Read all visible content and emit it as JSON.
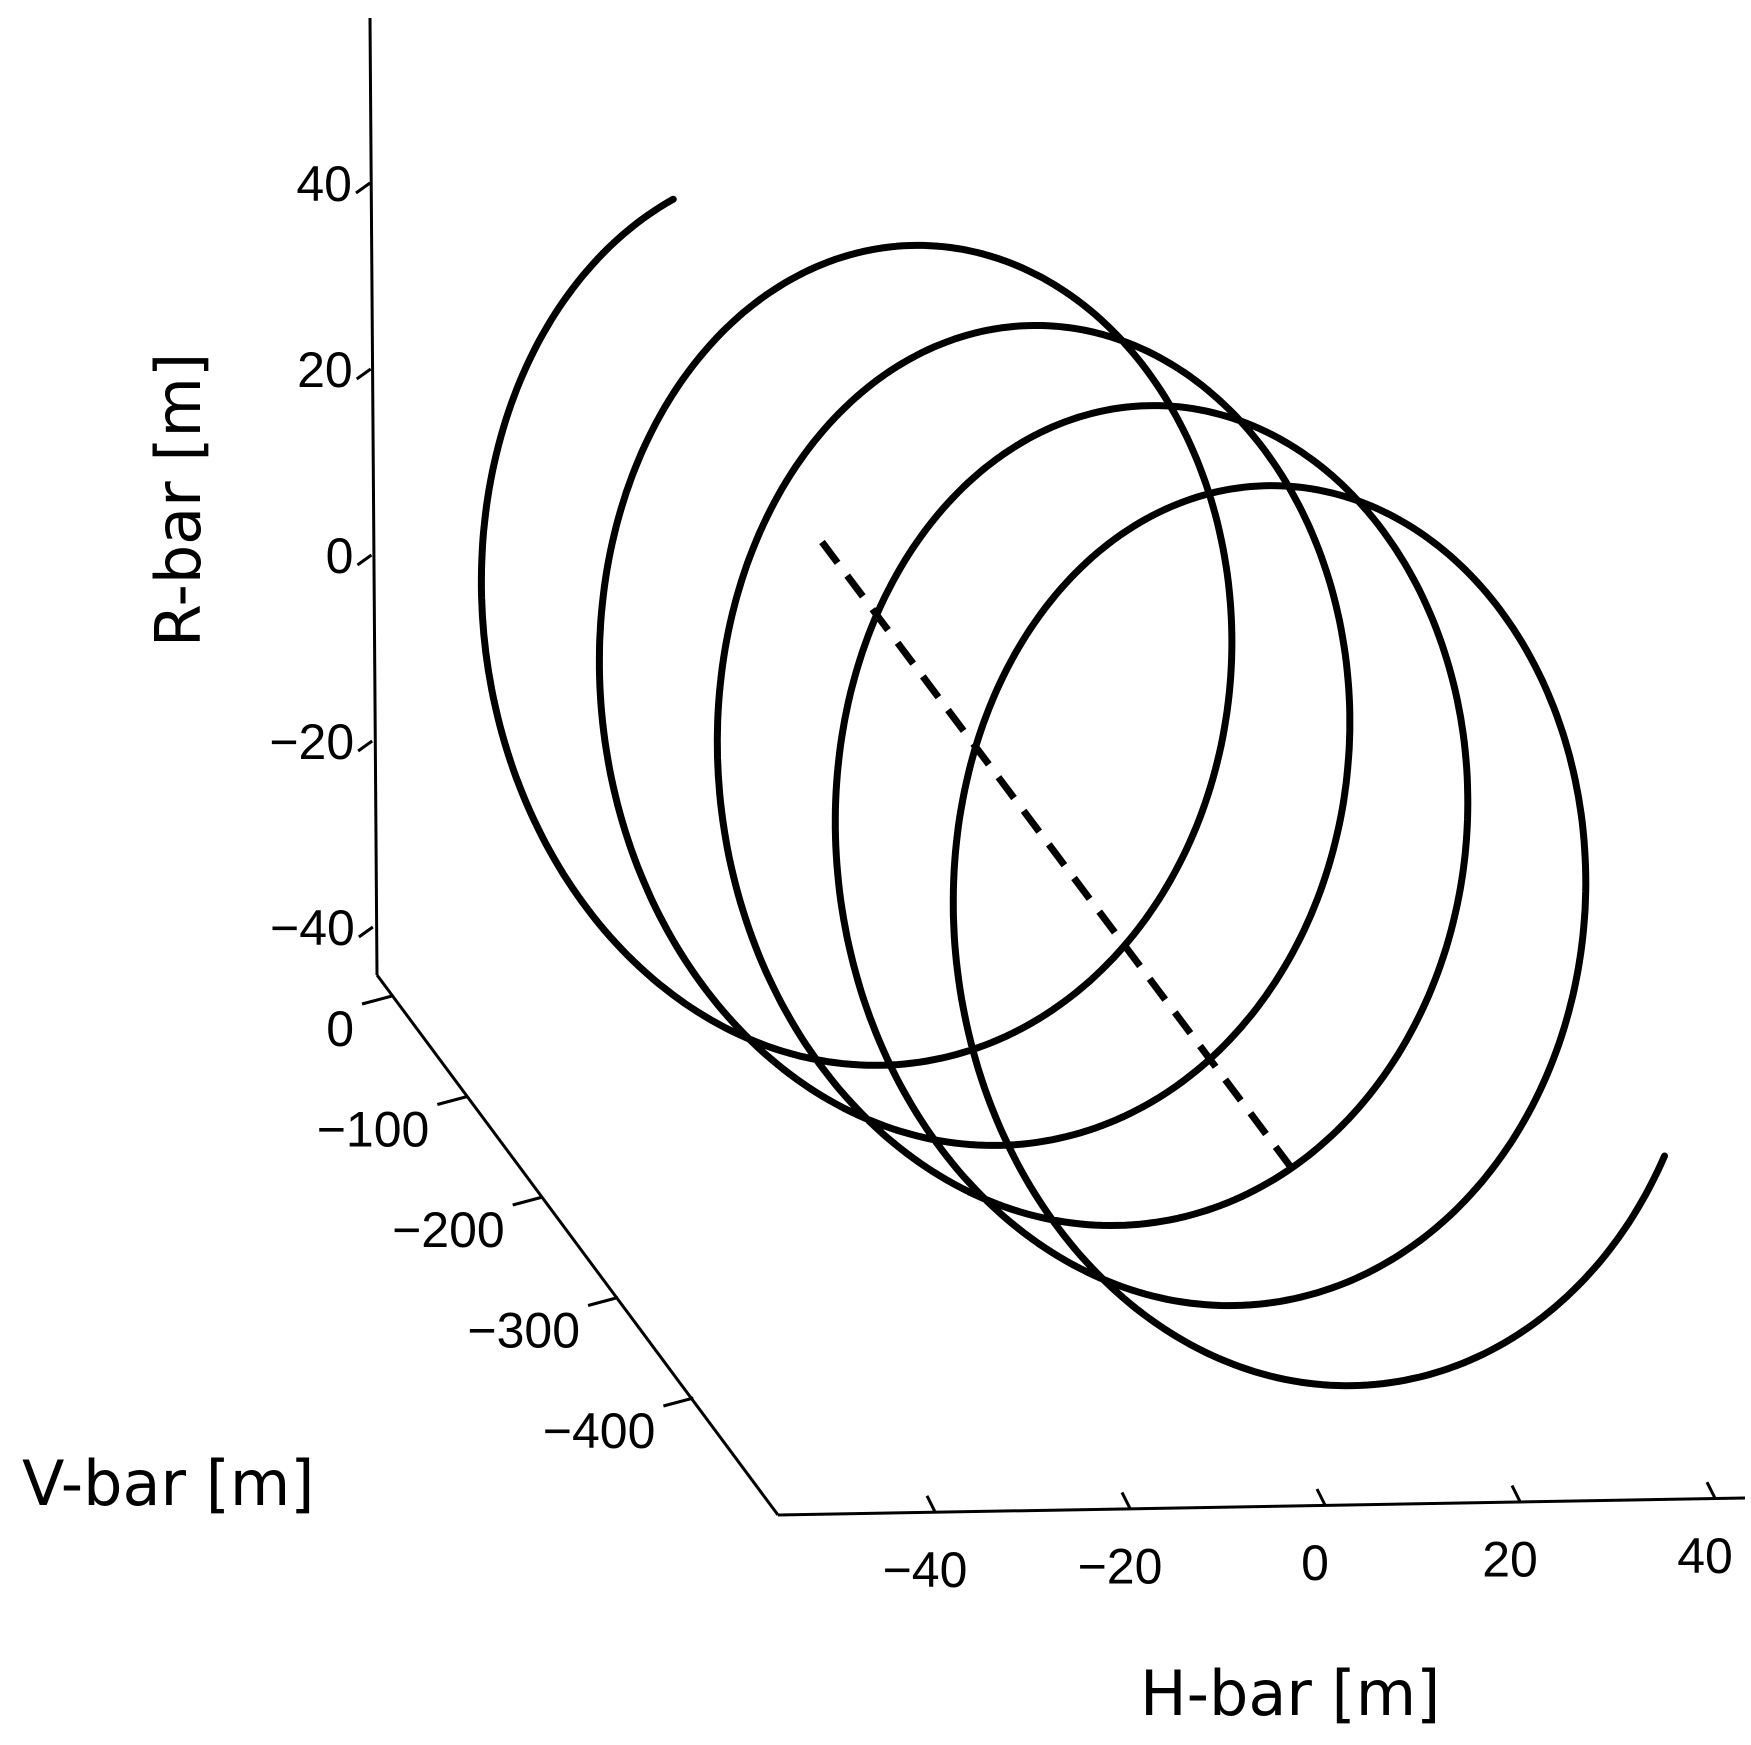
{
  "chart_data": {
    "type": "line",
    "projection": "3d",
    "title": "",
    "axes": {
      "x": {
        "label": "H-bar [m]",
        "range": [
          -50,
          50
        ],
        "ticks": [
          -40,
          -20,
          0,
          20,
          40
        ]
      },
      "y": {
        "label": "V-bar [m]",
        "range": [
          -450,
          50
        ],
        "ticks": [
          0,
          -100,
          -200,
          -300,
          -400
        ]
      },
      "z": {
        "label": "R-bar [m]",
        "range": [
          -40,
          60
        ],
        "ticks": [
          40,
          20,
          0,
          -20,
          -40
        ]
      }
    },
    "tick_labels": {
      "x": [
        "−40",
        "−20",
        "0",
        "20",
        "40"
      ],
      "y": [
        "0",
        "−100",
        "−200",
        "−300",
        "−400"
      ],
      "z": [
        "40",
        "20",
        "0",
        "−20",
        "−40"
      ]
    },
    "grid": false,
    "series": [
      {
        "style": "solid",
        "description_shape": "helix",
        "loops": 4.6
      },
      {
        "style": "dashed",
        "description_shape": "straight segment"
      }
    ]
  }
}
